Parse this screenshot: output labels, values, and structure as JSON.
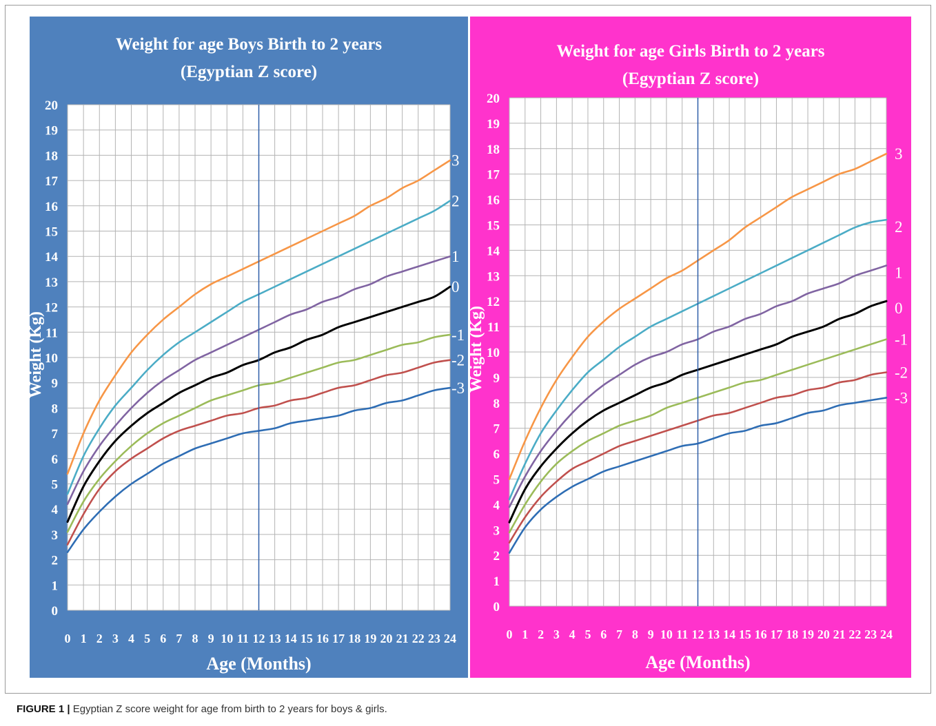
{
  "caption": {
    "label": "FIGURE 1 |",
    "text": "Egyptian Z score weight for age from birth to 2 years for boys & girls."
  },
  "chart_data": [
    {
      "type": "line",
      "title": "Weight for age Boys Birth to 2 years",
      "subtitle": "(Egyptian Z score)",
      "xlabel": "Age (Months)",
      "ylabel": "Weight (Kg)",
      "xlim": [
        0,
        24
      ],
      "ylim": [
        0,
        20
      ],
      "grid": true,
      "background_color": "#4f81bd",
      "reference_line_x": 12,
      "x": [
        0,
        1,
        2,
        3,
        4,
        5,
        6,
        7,
        8,
        9,
        10,
        11,
        12,
        13,
        14,
        15,
        16,
        17,
        18,
        19,
        20,
        21,
        22,
        23,
        24
      ],
      "series": [
        {
          "name": "3",
          "color": "#f79646",
          "values": [
            5.4,
            7.0,
            8.3,
            9.3,
            10.2,
            10.9,
            11.5,
            12.0,
            12.5,
            12.9,
            13.2,
            13.5,
            13.8,
            14.1,
            14.4,
            14.7,
            15.0,
            15.3,
            15.6,
            16.0,
            16.3,
            16.7,
            17.0,
            17.4,
            17.8
          ]
        },
        {
          "name": "2",
          "color": "#4bacc6",
          "values": [
            4.6,
            6.1,
            7.2,
            8.1,
            8.8,
            9.5,
            10.1,
            10.6,
            11.0,
            11.4,
            11.8,
            12.2,
            12.5,
            12.8,
            13.1,
            13.4,
            13.7,
            14.0,
            14.3,
            14.6,
            14.9,
            15.2,
            15.5,
            15.8,
            16.2
          ]
        },
        {
          "name": "1",
          "color": "#8064a2",
          "values": [
            4.2,
            5.5,
            6.5,
            7.3,
            8.0,
            8.6,
            9.1,
            9.5,
            9.9,
            10.2,
            10.5,
            10.8,
            11.1,
            11.4,
            11.7,
            11.9,
            12.2,
            12.4,
            12.7,
            12.9,
            13.2,
            13.4,
            13.6,
            13.8,
            14.0
          ]
        },
        {
          "name": "0",
          "color": "#000000",
          "values": [
            3.5,
            4.9,
            5.9,
            6.7,
            7.3,
            7.8,
            8.2,
            8.6,
            8.9,
            9.2,
            9.4,
            9.7,
            9.9,
            10.2,
            10.4,
            10.7,
            10.9,
            11.2,
            11.4,
            11.6,
            11.8,
            12.0,
            12.2,
            12.4,
            12.8
          ]
        },
        {
          "name": "-1",
          "color": "#9bbb59",
          "values": [
            3.1,
            4.3,
            5.2,
            5.9,
            6.5,
            7.0,
            7.4,
            7.7,
            8.0,
            8.3,
            8.5,
            8.7,
            8.9,
            9.0,
            9.2,
            9.4,
            9.6,
            9.8,
            9.9,
            10.1,
            10.3,
            10.5,
            10.6,
            10.8,
            10.9
          ]
        },
        {
          "name": "-2",
          "color": "#c0504d",
          "values": [
            2.6,
            3.8,
            4.8,
            5.5,
            6.0,
            6.4,
            6.8,
            7.1,
            7.3,
            7.5,
            7.7,
            7.8,
            8.0,
            8.1,
            8.3,
            8.4,
            8.6,
            8.8,
            8.9,
            9.1,
            9.3,
            9.4,
            9.6,
            9.8,
            9.9
          ]
        },
        {
          "name": "-3",
          "color": "#2e6db4",
          "values": [
            2.3,
            3.2,
            3.9,
            4.5,
            5.0,
            5.4,
            5.8,
            6.1,
            6.4,
            6.6,
            6.8,
            7.0,
            7.1,
            7.2,
            7.4,
            7.5,
            7.6,
            7.7,
            7.9,
            8.0,
            8.2,
            8.3,
            8.5,
            8.7,
            8.8
          ]
        }
      ]
    },
    {
      "type": "line",
      "title": "Weight for age Girls Birth to 2 years",
      "subtitle": "(Egyptian Z score)",
      "xlabel": "Age (Months)",
      "ylabel": "Weight (Kg)",
      "xlim": [
        0,
        24
      ],
      "ylim": [
        0,
        20
      ],
      "grid": true,
      "background_color": "#ff33cc",
      "reference_line_x": 12,
      "x": [
        0,
        1,
        2,
        3,
        4,
        5,
        6,
        7,
        8,
        9,
        10,
        11,
        12,
        13,
        14,
        15,
        16,
        17,
        18,
        19,
        20,
        21,
        22,
        23,
        24
      ],
      "series": [
        {
          "name": "3",
          "color": "#f79646",
          "values": [
            5.0,
            6.5,
            7.8,
            8.9,
            9.8,
            10.6,
            11.2,
            11.7,
            12.1,
            12.5,
            12.9,
            13.2,
            13.6,
            14.0,
            14.4,
            14.9,
            15.3,
            15.7,
            16.1,
            16.4,
            16.7,
            17.0,
            17.2,
            17.5,
            17.8
          ]
        },
        {
          "name": "2",
          "color": "#4bacc6",
          "values": [
            4.2,
            5.6,
            6.8,
            7.7,
            8.5,
            9.2,
            9.7,
            10.2,
            10.6,
            11.0,
            11.3,
            11.6,
            11.9,
            12.2,
            12.5,
            12.8,
            13.1,
            13.4,
            13.7,
            14.0,
            14.3,
            14.6,
            14.9,
            15.1,
            15.2
          ]
        },
        {
          "name": "1",
          "color": "#8064a2",
          "values": [
            3.9,
            5.1,
            6.1,
            6.9,
            7.6,
            8.2,
            8.7,
            9.1,
            9.5,
            9.8,
            10.0,
            10.3,
            10.5,
            10.8,
            11.0,
            11.3,
            11.5,
            11.8,
            12.0,
            12.3,
            12.5,
            12.7,
            13.0,
            13.2,
            13.4
          ]
        },
        {
          "name": "0",
          "color": "#000000",
          "values": [
            3.3,
            4.6,
            5.5,
            6.2,
            6.8,
            7.3,
            7.7,
            8.0,
            8.3,
            8.6,
            8.8,
            9.1,
            9.3,
            9.5,
            9.7,
            9.9,
            10.1,
            10.3,
            10.6,
            10.8,
            11.0,
            11.3,
            11.5,
            11.8,
            12.0
          ]
        },
        {
          "name": "-1",
          "color": "#9bbb59",
          "values": [
            2.9,
            4.0,
            4.9,
            5.6,
            6.1,
            6.5,
            6.8,
            7.1,
            7.3,
            7.5,
            7.8,
            8.0,
            8.2,
            8.4,
            8.6,
            8.8,
            8.9,
            9.1,
            9.3,
            9.5,
            9.7,
            9.9,
            10.1,
            10.3,
            10.5
          ]
        },
        {
          "name": "-2",
          "color": "#c0504d",
          "values": [
            2.5,
            3.5,
            4.3,
            4.9,
            5.4,
            5.7,
            6.0,
            6.3,
            6.5,
            6.7,
            6.9,
            7.1,
            7.3,
            7.5,
            7.6,
            7.8,
            8.0,
            8.2,
            8.3,
            8.5,
            8.6,
            8.8,
            8.9,
            9.1,
            9.2
          ]
        },
        {
          "name": "-3",
          "color": "#2e6db4",
          "values": [
            2.1,
            3.1,
            3.8,
            4.3,
            4.7,
            5.0,
            5.3,
            5.5,
            5.7,
            5.9,
            6.1,
            6.3,
            6.4,
            6.6,
            6.8,
            6.9,
            7.1,
            7.2,
            7.4,
            7.6,
            7.7,
            7.9,
            8.0,
            8.1,
            8.2
          ]
        }
      ]
    }
  ]
}
